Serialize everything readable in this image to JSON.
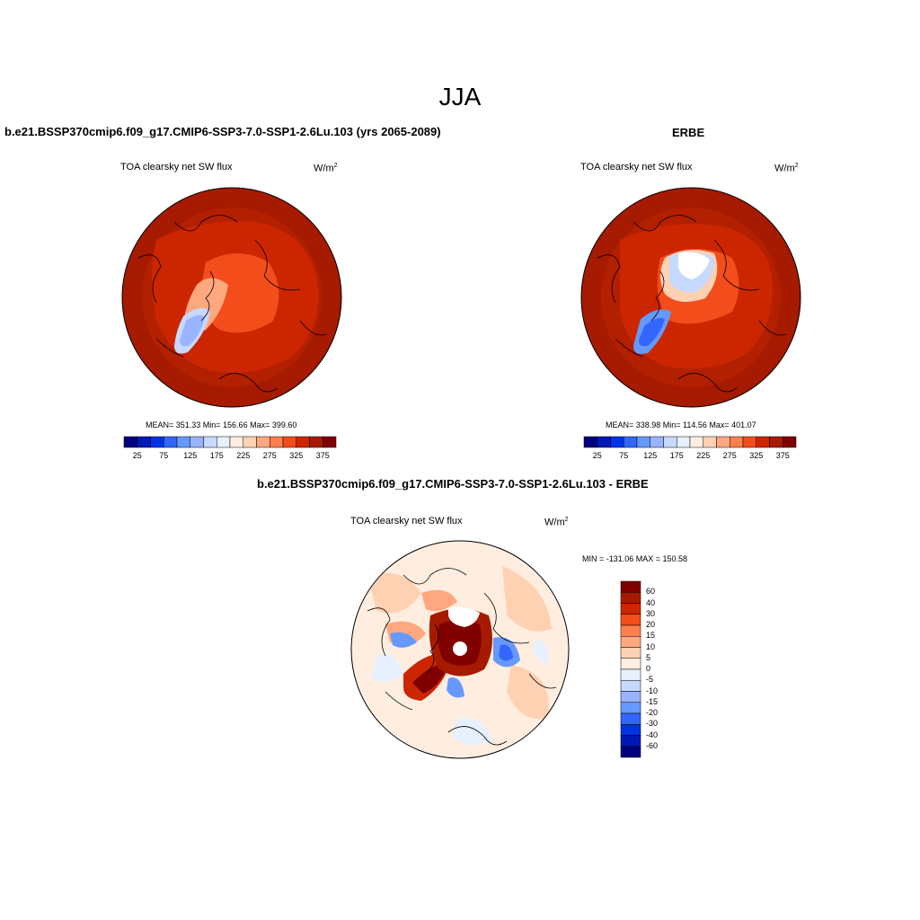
{
  "figure": {
    "title": "JJA",
    "units_base": "W/m",
    "units_exp": "2",
    "variable": "TOA clearsky net SW flux"
  },
  "panels": [
    {
      "id": "model",
      "title": "b.e21.BSSP370cmip6.f09_g17.CMIP6-SSP3-7.0-SSP1-2.6Lu.103 (yrs 2065-2089)",
      "stats": "MEAN= 351.33  Min= 156.66  Max= 399.60",
      "colorbar": {
        "colors": [
          "#00007f",
          "#0019b3",
          "#0033e6",
          "#3366ff",
          "#6699ff",
          "#99b3ff",
          "#c6d9ff",
          "#e6f0ff",
          "#ffeee0",
          "#ffd1b3",
          "#ffa880",
          "#ff7f4d",
          "#f24d1a",
          "#cc2600",
          "#a61a00",
          "#800000"
        ],
        "tick_labels": [
          "25",
          "75",
          "125",
          "175",
          "225",
          "275",
          "325",
          "375"
        ]
      }
    },
    {
      "id": "obs",
      "title": "ERBE",
      "stats": "MEAN= 338.98  Min= 114.56  Max= 401.07",
      "colorbar": {
        "colors": [
          "#00007f",
          "#0019b3",
          "#0033e6",
          "#3366ff",
          "#6699ff",
          "#99b3ff",
          "#c6d9ff",
          "#e6f0ff",
          "#ffeee0",
          "#ffd1b3",
          "#ffa880",
          "#ff7f4d",
          "#f24d1a",
          "#cc2600",
          "#a61a00",
          "#800000"
        ],
        "tick_labels": [
          "25",
          "75",
          "125",
          "175",
          "225",
          "275",
          "325",
          "375"
        ]
      }
    },
    {
      "id": "diff",
      "title": "b.e21.BSSP370cmip6.f09_g17.CMIP6-SSP3-7.0-SSP1-2.6Lu.103 - ERBE",
      "stats": "MIN = -131.06 MAX = 150.58",
      "colorbar": {
        "colors": [
          "#800000",
          "#a61a00",
          "#cc2600",
          "#f24d1a",
          "#ff7f4d",
          "#ffa880",
          "#ffd1b3",
          "#ffeee0",
          "#e6f0ff",
          "#c6d9ff",
          "#99b3ff",
          "#6699ff",
          "#3366ff",
          "#0033e6",
          "#0019b3",
          "#00007f"
        ],
        "tick_labels": [
          "60",
          "40",
          "30",
          "20",
          "15",
          "10",
          "5",
          "0",
          "-5",
          "-10",
          "-15",
          "-20",
          "-30",
          "-40",
          "-60"
        ]
      }
    }
  ]
}
